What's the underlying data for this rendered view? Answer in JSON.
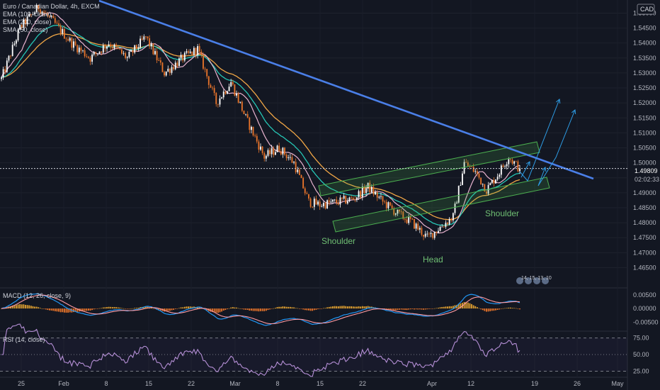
{
  "header": {
    "symbol_line": "Euro / Canadian Dollar, 4h, EXCM",
    "indicator_1": "EMA (100, close)",
    "indicator_2": "EMA (200, close)",
    "indicator_3": "SMA (50, close)",
    "currency": "CAD"
  },
  "price_label": {
    "value": "1.49809",
    "countdown": "02:02:33"
  },
  "annotations": {
    "left_shoulder": "Shoulder",
    "head": "Head",
    "right_shoulder": "Shoulder",
    "event_badge": "14, 15, 13, 10"
  },
  "macd": {
    "label": "MACD (12, 26, close, 9)",
    "ticks": [
      "0.00500",
      "0.00000",
      "-0.00500"
    ]
  },
  "rsi": {
    "label": "RSI (14, close)",
    "ticks": [
      "75.00",
      "50.00",
      "25.00"
    ]
  },
  "colors": {
    "background": "#131722",
    "up_candle": "#ffffff",
    "down_candle": "#e8742a",
    "trendline": "#4a7fe8",
    "ema100": "#26c6b5",
    "ema200": "#f0a646",
    "sma50": "#e8b3cf",
    "channel": "#4caf50",
    "projection": "#2e9de6",
    "macd_line": "#2196f3",
    "signal_line": "#ff9aa2",
    "rsi_line": "#b58fd6"
  },
  "chart_data": [
    {
      "type": "candlestick",
      "title": "Euro / Canadian Dollar, 4h, EXCM",
      "x_ticks": [
        "25",
        "Feb",
        "8",
        "15",
        "22",
        "Mar",
        "8",
        "15",
        "22",
        "Apr",
        "12",
        "19",
        "26",
        "May"
      ],
      "y_ticks": [
        1.55,
        1.545,
        1.54,
        1.535,
        1.53,
        1.525,
        1.52,
        1.515,
        1.51,
        1.505,
        1.5,
        1.495,
        1.49,
        1.485,
        1.48,
        1.475,
        1.47,
        1.465
      ],
      "ylim": [
        1.4625,
        1.552
      ],
      "last_price": 1.49809,
      "keypoints": [
        {
          "x": 0,
          "y": 1.528
        },
        {
          "x": 10,
          "y": 1.545
        },
        {
          "x": 20,
          "y": 1.552
        },
        {
          "x": 28,
          "y": 1.547
        },
        {
          "x": 38,
          "y": 1.54
        },
        {
          "x": 48,
          "y": 1.535
        },
        {
          "x": 58,
          "y": 1.54
        },
        {
          "x": 68,
          "y": 1.535
        },
        {
          "x": 78,
          "y": 1.542
        },
        {
          "x": 88,
          "y": 1.53
        },
        {
          "x": 98,
          "y": 1.535
        },
        {
          "x": 106,
          "y": 1.538
        },
        {
          "x": 116,
          "y": 1.52
        },
        {
          "x": 124,
          "y": 1.527
        },
        {
          "x": 132,
          "y": 1.515
        },
        {
          "x": 142,
          "y": 1.502
        },
        {
          "x": 150,
          "y": 1.505
        },
        {
          "x": 158,
          "y": 1.5
        },
        {
          "x": 166,
          "y": 1.487
        },
        {
          "x": 172,
          "y": 1.486
        },
        {
          "x": 182,
          "y": 1.487
        },
        {
          "x": 190,
          "y": 1.488
        },
        {
          "x": 198,
          "y": 1.492
        },
        {
          "x": 206,
          "y": 1.487
        },
        {
          "x": 214,
          "y": 1.483
        },
        {
          "x": 222,
          "y": 1.48
        },
        {
          "x": 230,
          "y": 1.475
        },
        {
          "x": 236,
          "y": 1.478
        },
        {
          "x": 244,
          "y": 1.482
        },
        {
          "x": 250,
          "y": 1.5
        },
        {
          "x": 256,
          "y": 1.497
        },
        {
          "x": 262,
          "y": 1.491
        },
        {
          "x": 268,
          "y": 1.496
        },
        {
          "x": 274,
          "y": 1.502
        },
        {
          "x": 280,
          "y": 1.498
        }
      ]
    },
    {
      "type": "line",
      "title": "MACD (12, 26, close, 9)",
      "y_ticks": [
        0.005,
        0.0,
        -0.005
      ],
      "ylim": [
        -0.0075,
        0.0065
      ]
    },
    {
      "type": "line",
      "title": "RSI (14, close)",
      "y_ticks": [
        75,
        50,
        25
      ],
      "ylim": [
        18,
        82
      ]
    }
  ]
}
